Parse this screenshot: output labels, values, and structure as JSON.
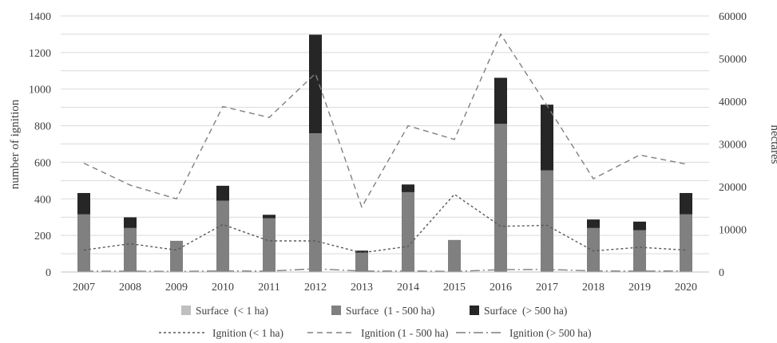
{
  "chart_data": {
    "type": "bar",
    "categories": [
      "2007",
      "2008",
      "2009",
      "2010",
      "2011",
      "2012",
      "2013",
      "2014",
      "2015",
      "2016",
      "2017",
      "2018",
      "2019",
      "2020"
    ],
    "ylabel": "hectares",
    "ylabel_left": "number of ignition",
    "ylim_left": [
      0,
      1400
    ],
    "yticks_left": [
      "0",
      "200",
      "400",
      "600",
      "800",
      "1000",
      "1200",
      "1400"
    ],
    "ylim_right": [
      0,
      60000
    ],
    "yticks_right": [
      "0",
      "10000",
      "20000",
      "30000",
      "40000",
      "50000",
      "60000"
    ],
    "grid": true,
    "legend_position": "bottom",
    "bar_series": [
      {
        "name": "Surface  (< 1 ha)",
        "color": "#bfbfbf",
        "values": [
          10,
          10,
          10,
          10,
          10,
          10,
          10,
          10,
          10,
          10,
          10,
          10,
          10,
          10
        ]
      },
      {
        "name": "Surface  (1 - 500 ha)",
        "color": "#808080",
        "values": [
          13500,
          10300,
          7300,
          16700,
          12600,
          32500,
          4500,
          18700,
          7500,
          34700,
          23800,
          10300,
          9800,
          13500
        ]
      },
      {
        "name": "Surface  (> 500 ha)",
        "color": "#262626",
        "values": [
          5000,
          2500,
          0,
          3500,
          800,
          23100,
          500,
          1800,
          0,
          10800,
          15400,
          2000,
          2000,
          5000
        ]
      }
    ],
    "line_series": [
      {
        "name": "Ignition (< 1 ha)",
        "color": "#595959",
        "dash": "3,3",
        "values": [
          120,
          155,
          120,
          260,
          170,
          170,
          105,
          140,
          425,
          250,
          255,
          115,
          135,
          120
        ]
      },
      {
        "name": "Ignition (1 - 500 ha)",
        "color": "#808080",
        "dash": "7,5",
        "values": [
          595,
          475,
          400,
          905,
          845,
          1085,
          355,
          800,
          725,
          1300,
          910,
          510,
          640,
          590
        ]
      },
      {
        "name": "Ignition (> 500 ha)",
        "color": "#7f7f7f",
        "dash": "12,4,2,4",
        "values": [
          5,
          5,
          3,
          6,
          5,
          18,
          5,
          6,
          3,
          13,
          14,
          6,
          5,
          6
        ]
      }
    ]
  },
  "colors": {
    "grid": "#d9d9d9",
    "axis": "#bfbfbf",
    "text": "#404040"
  }
}
